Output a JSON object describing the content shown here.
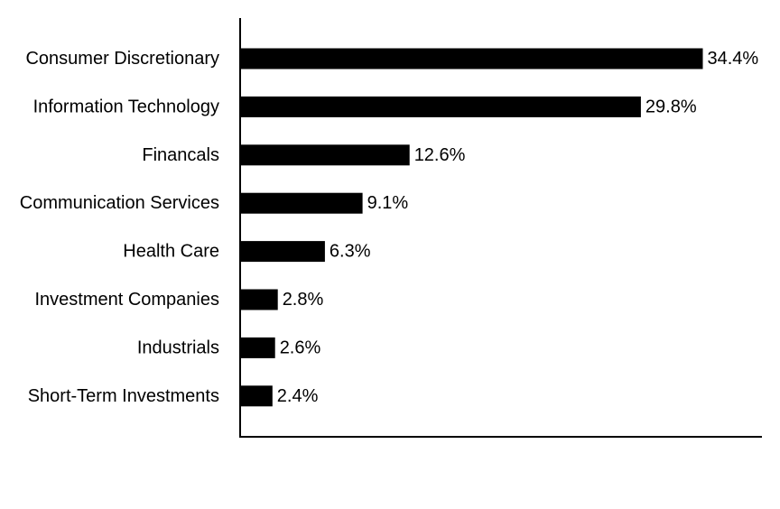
{
  "chart_data": {
    "type": "bar",
    "orientation": "horizontal",
    "categories": [
      "Consumer Discretionary",
      "Information Technology",
      "Financals",
      "Communication Services",
      "Health Care",
      "Investment Companies",
      "Industrials",
      "Short-Term Investments"
    ],
    "values": [
      34.4,
      29.8,
      12.6,
      9.1,
      6.3,
      2.8,
      2.6,
      2.4
    ],
    "value_labels": [
      "34.4%",
      "29.8%",
      "12.6%",
      "9.1%",
      "6.3%",
      "2.8%",
      "2.6%",
      "2.4%"
    ],
    "unit": "%",
    "title": "",
    "xlabel": "",
    "ylabel": "",
    "xlim": [
      0,
      38.8
    ],
    "grid": false,
    "legend": "none",
    "bar_color": "#000000"
  }
}
